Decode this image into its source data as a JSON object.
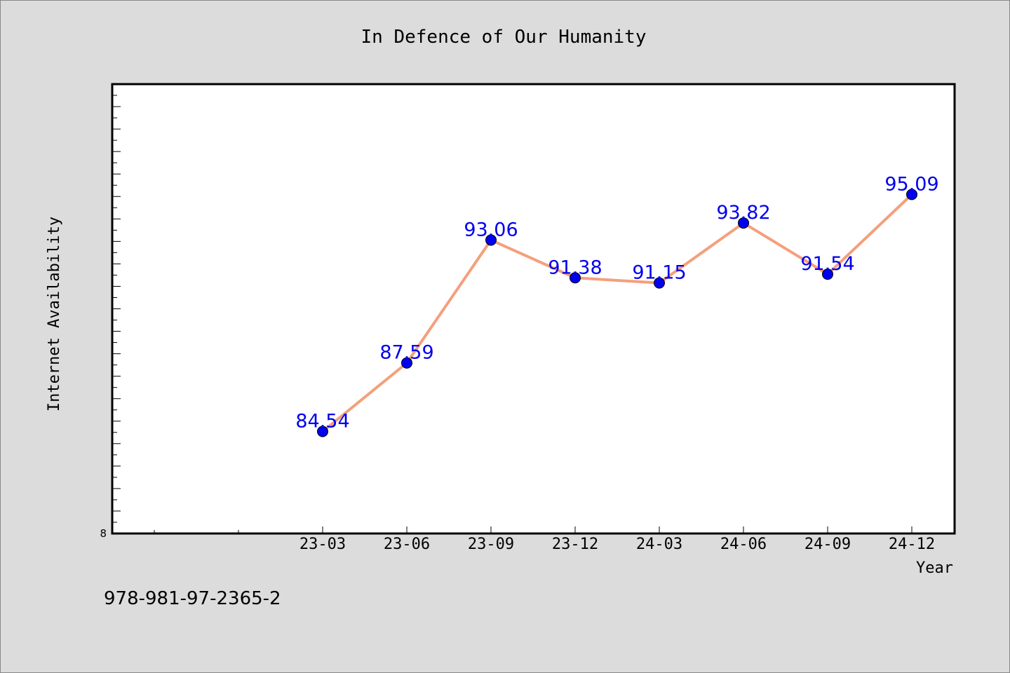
{
  "chart_data": {
    "type": "line",
    "title": "In Defence of Our Humanity",
    "xlabel": "Year",
    "ylabel": "Internet Availability",
    "categories": [
      "23-03",
      "23-06",
      "23-09",
      "23-12",
      "24-03",
      "24-06",
      "24-09",
      "24-12"
    ],
    "series": [
      {
        "values": [
          84.54,
          87.59,
          93.06,
          91.38,
          91.15,
          93.82,
          91.54,
          95.09
        ],
        "line_color": "#f4a07c",
        "marker_color": "#0000ee",
        "label_color": "#0000ee"
      }
    ],
    "ylim": [
      80,
      100
    ],
    "y_tick_labels": [
      "8"
    ],
    "grid": false,
    "legend": "none"
  },
  "footer_text": "978-981-97-2365-2",
  "colors": {
    "background": "#dcdcdc",
    "plot_background": "#ffffff",
    "axis": "#000000"
  }
}
